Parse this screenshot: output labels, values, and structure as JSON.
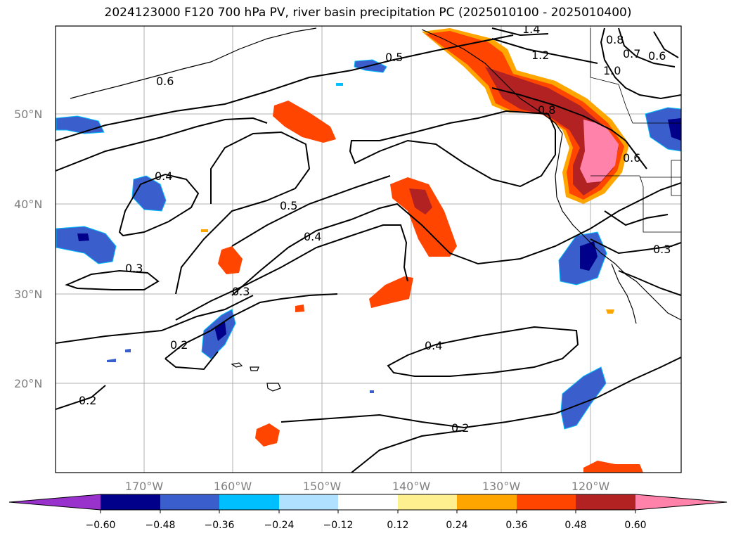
{
  "title": "2024123000 F120 700 hPa PV, river basin precipitation PC (2025010100 - 2025010400)",
  "map": {
    "lat_labels": [
      "50°N",
      "40°N",
      "30°N",
      "20°N"
    ],
    "lon_labels": [
      "170°W",
      "160°W",
      "150°W",
      "140°W",
      "130°W",
      "120°W"
    ],
    "contour_labels": [
      "1.4",
      "1.2",
      "0.5",
      "0.6",
      "0.4",
      "0.5",
      "0.4",
      "0.3",
      "0.3",
      "0.2",
      "0.4",
      "0.2",
      "0.2",
      "0.8",
      "0.7",
      "0.6",
      "1.0",
      "0.8",
      "0.6",
      "0.3"
    ]
  },
  "colorbar": {
    "ticks": [
      "−0.60",
      "−0.48",
      "−0.36",
      "−0.24",
      "−0.12",
      "0.12",
      "0.24",
      "0.36",
      "0.48",
      "0.60"
    ],
    "colors": [
      "#9932cc",
      "#00008b",
      "#3a5fcd",
      "#00bfff",
      "#b0e2ff",
      "#ffffff",
      "#fff08f",
      "#ffa500",
      "#ff4500",
      "#b22222",
      "#ff82ab"
    ]
  }
}
